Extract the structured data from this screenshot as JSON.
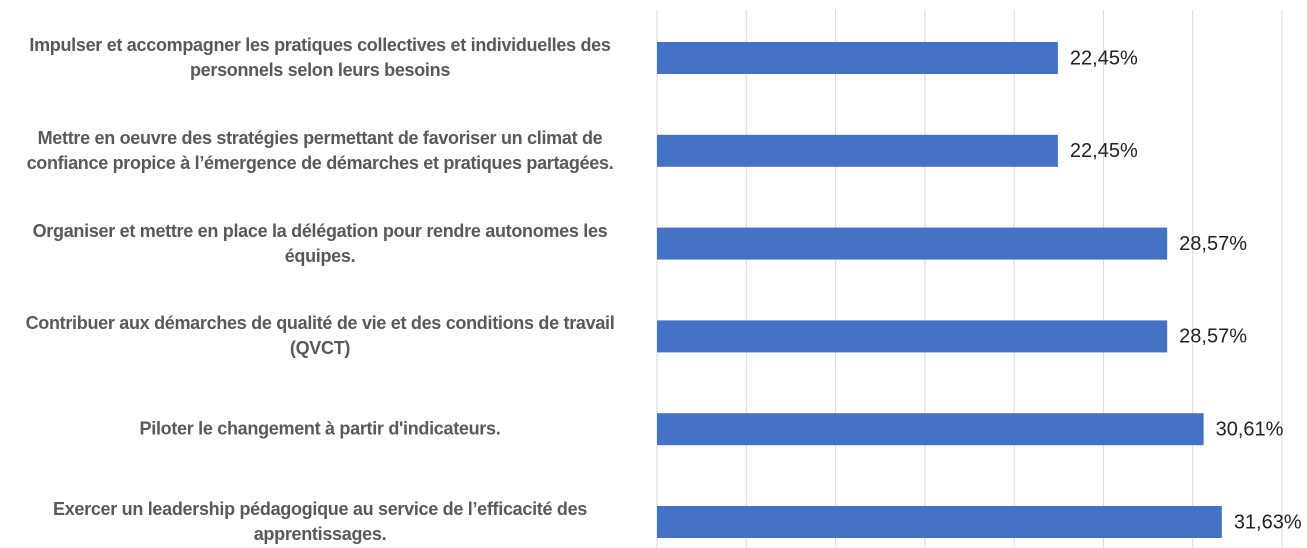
{
  "chart_data": {
    "type": "bar",
    "orientation": "horizontal",
    "categories": [
      "Impulser et accompagner les pratiques collectives et individuelles des personnels selon leurs besoins",
      "Mettre en oeuvre des stratégies permettant de favoriser un climat de confiance propice à l’émergence de démarches et pratiques partagées.",
      "Organiser et mettre en place la délégation pour rendre autonomes les équipes.",
      "Contribuer aux démarches de qualité de vie et des conditions de travail (QVCT)",
      "Piloter le changement à partir d'indicateurs.",
      "Exercer un leadership pédagogique au service de l’efficacité des apprentissages."
    ],
    "values": [
      22.45,
      22.45,
      28.57,
      28.57,
      30.61,
      31.63
    ],
    "value_labels": [
      "22,45%",
      "22,45%",
      "28,57%",
      "28,57%",
      "30,61%",
      "31,63%"
    ],
    "color": "#4472c4",
    "xlim": [
      0,
      35
    ],
    "xticks": [
      0,
      5,
      10,
      15,
      20,
      25,
      30,
      35
    ],
    "grid": true
  }
}
